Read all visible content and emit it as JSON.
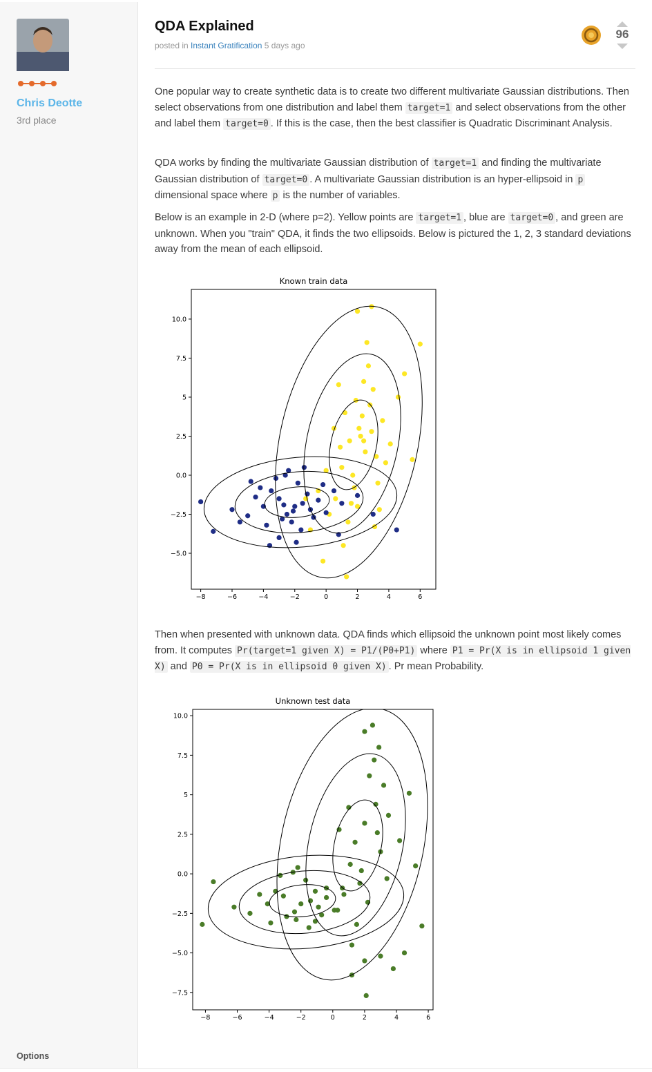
{
  "sidebar": {
    "name": "Chris Deotte",
    "rank": "3rd place",
    "options": "Options"
  },
  "post": {
    "title": "QDA Explained",
    "meta": {
      "prefix": "posted in",
      "link": "Instant Gratification",
      "suffix": "5 days ago"
    },
    "votes": 96,
    "paragraphs": [
      [
        {
          "text": "One popular way to create synthetic data is to create two different multivariate Gaussian distributions. Then select observations from one distribution and label them "
        },
        {
          "code": "target=1"
        },
        {
          "text": " and select observations from the other and label them "
        },
        {
          "code": "target=0"
        },
        {
          "text": ". If this is the case, then the best classifier is Quadratic Discriminant Analysis."
        }
      ],
      [
        {
          "text": "QDA works by finding the multivariate Gaussian distribution of "
        },
        {
          "code": "target=1"
        },
        {
          "text": " and finding the multivariate Gaussian distribution of "
        },
        {
          "code": "target=0"
        },
        {
          "text": ". A multivariate Gaussian distribution is an hyper-ellipsoid in "
        },
        {
          "code": "p"
        },
        {
          "text": " dimensional space where "
        },
        {
          "code": "p"
        },
        {
          "text": " is the number of variables."
        }
      ],
      [
        {
          "text": "Below is an example in 2-D (where p=2). Yellow points are "
        },
        {
          "code": "target=1"
        },
        {
          "text": ", blue are "
        },
        {
          "code": "target=0"
        },
        {
          "text": ", and green are unknown. When you \"train\" QDA, it finds the two ellipsoids. Below is pictured the 1, 2, 3 standard deviations away from the mean of each ellipsoid."
        }
      ],
      [
        {
          "text": "Then when presented with unknown data. QDA finds which ellipsoid the unknown point most likely comes from. It computes "
        },
        {
          "code": "Pr(target=1 given X) = P1/(P0+P1)"
        },
        {
          "text": " where "
        },
        {
          "code": "P1 = Pr(X is in ellipsoid 1 given X)"
        },
        {
          "text": " and "
        },
        {
          "code": "P0 = Pr(X is in ellipsoid 0 given X)"
        },
        {
          "text": ". Pr mean Probability."
        }
      ]
    ]
  },
  "chart_data": [
    {
      "type": "scatter",
      "title": "Known train data",
      "xlim": [
        -8.6,
        7.0
      ],
      "ylim": [
        -7.3,
        11.9
      ],
      "xticks": [
        {
          "value": -8,
          "label": "−8"
        },
        {
          "value": -6,
          "label": "−6"
        },
        {
          "value": -4,
          "label": "−4"
        },
        {
          "value": -2,
          "label": "−2"
        },
        0,
        2,
        4,
        6
      ],
      "yticks": [
        {
          "value": -5,
          "label": "−5.0"
        },
        {
          "value": -2.5,
          "label": "−2.5"
        },
        {
          "value": 0,
          "label": "0.0"
        },
        2.5,
        5,
        7.5,
        {
          "value": 10,
          "label": "10.0"
        }
      ],
      "series": [
        {
          "color": "#fde725",
          "x": [
            2.1,
            1.5,
            2.8,
            1.0,
            3.2,
            2.4,
            1.8,
            0.6,
            2.9,
            3.6,
            1.2,
            2.0,
            2.5,
            0.2,
            3.0,
            1.7,
            4.1,
            2.3,
            -0.5,
            1.4,
            2.7,
            3.3,
            0.9,
            2.2,
            1.9,
            4.6,
            -1.0,
            3.8,
            1.1,
            2.6,
            0.0,
            5.0,
            1.6,
            2.0,
            3.4,
            -0.2,
            2.9,
            0.5,
            1.3,
            5.5,
            2.4,
            -1.3,
            3.1,
            0.8,
            6.0
          ],
          "y": [
            3.0,
            2.2,
            4.5,
            0.5,
            1.2,
            6.0,
            -0.8,
            -1.5,
            2.8,
            3.5,
            4.0,
            -2.0,
            1.5,
            -2.5,
            5.5,
            0.0,
            2.0,
            3.8,
            -1.0,
            -3.0,
            7.0,
            -0.5,
            1.8,
            2.5,
            4.8,
            5.0,
            -3.5,
            0.8,
            -4.5,
            8.5,
            0.3,
            6.5,
            -1.8,
            10.5,
            -2.2,
            -5.5,
            10.8,
            3.0,
            -6.5,
            1.0,
            2.2,
            -1.5,
            -3.3,
            5.8,
            8.4
          ]
        },
        {
          "color": "#1f2d86",
          "x": [
            -2.0,
            -1.5,
            -3.0,
            -2.5,
            -1.0,
            -3.5,
            -0.5,
            -2.8,
            -4.0,
            -1.8,
            -2.2,
            -0.8,
            -3.2,
            -4.5,
            -1.2,
            0.0,
            -2.6,
            -5.0,
            -1.6,
            0.5,
            -3.8,
            -2.4,
            -6.0,
            -0.2,
            -3.0,
            1.0,
            -4.2,
            -1.9,
            -7.2,
            -2.7,
            2.0,
            -5.5,
            -1.4,
            3.0,
            -3.6,
            -8.0,
            4.5,
            -4.8,
            -2.1,
            0.8
          ],
          "y": [
            -2.0,
            -1.8,
            -1.5,
            -2.5,
            -2.2,
            -1.0,
            -1.6,
            -2.8,
            -2.0,
            -0.5,
            -3.0,
            -2.7,
            -0.2,
            -1.4,
            -1.2,
            -2.4,
            0.0,
            -2.6,
            -3.5,
            -1.0,
            -3.2,
            0.3,
            -2.2,
            -0.6,
            -4.0,
            -1.8,
            -0.8,
            -4.3,
            -3.6,
            -1.9,
            -1.3,
            -3.0,
            0.5,
            -2.5,
            -4.5,
            -1.7,
            -3.5,
            -0.4,
            -2.3,
            -3.8
          ]
        }
      ]
    },
    {
      "type": "scatter",
      "title": "Unknown test data",
      "xlim": [
        -8.8,
        6.3
      ],
      "ylim": [
        -8.6,
        10.4
      ],
      "xticks": [
        {
          "value": -8,
          "label": "−8"
        },
        {
          "value": -6,
          "label": "−6"
        },
        {
          "value": -4,
          "label": "−4"
        },
        {
          "value": -2,
          "label": "−2"
        },
        0,
        2,
        4,
        6
      ],
      "yticks": [
        {
          "value": -7.5,
          "label": "−7.5"
        },
        {
          "value": -5,
          "label": "−5.0"
        },
        {
          "value": -2.5,
          "label": "−2.5"
        },
        {
          "value": 0,
          "label": "0.0"
        },
        2.5,
        5,
        7.5,
        {
          "value": 10,
          "label": "10.0"
        }
      ],
      "series": [
        {
          "color": "#4a7c28",
          "x": [
            2.0,
            1.4,
            2.7,
            1.1,
            3.0,
            2.3,
            1.7,
            0.7,
            2.8,
            3.5,
            1.0,
            2.2,
            0.3,
            3.2,
            1.8,
            4.2,
            -0.4,
            2.6,
            3.4,
            2.0,
            4.8,
            1.5,
            2.9,
            0.4,
            5.2,
            2.5,
            -1.1,
            3.0,
            1.2,
            2.1,
            -2.0,
            -1.4,
            -3.1,
            -2.4,
            -0.9,
            -3.6,
            -0.4,
            -2.9,
            -4.1,
            -1.7,
            -2.3,
            -0.7,
            -3.3,
            -4.6,
            -1.1,
            0.1,
            -2.5,
            -5.2,
            -1.5,
            0.6,
            -3.9,
            -2.2,
            -6.2,
            -7.5,
            -8.2,
            1.2,
            3.8,
            4.5,
            5.6,
            2.0
          ],
          "y": [
            3.2,
            2.0,
            4.4,
            0.6,
            1.4,
            6.2,
            -0.6,
            -1.3,
            2.6,
            3.7,
            4.2,
            -1.8,
            -2.3,
            5.6,
            0.2,
            2.1,
            -0.9,
            7.2,
            -0.3,
            9.0,
            5.1,
            -3.2,
            8.0,
            2.8,
            0.5,
            9.4,
            -3.0,
            -5.2,
            -6.4,
            -7.7,
            -1.9,
            -1.7,
            -1.4,
            -2.4,
            -2.1,
            -1.1,
            -1.5,
            -2.7,
            -1.9,
            -0.4,
            -2.9,
            -2.6,
            -0.1,
            -1.3,
            -1.1,
            -2.3,
            0.1,
            -2.5,
            -3.4,
            -0.9,
            -3.1,
            0.4,
            -2.1,
            -0.5,
            -3.2,
            -4.5,
            -6.0,
            -5.0,
            -3.3,
            -5.5
          ]
        }
      ]
    }
  ]
}
